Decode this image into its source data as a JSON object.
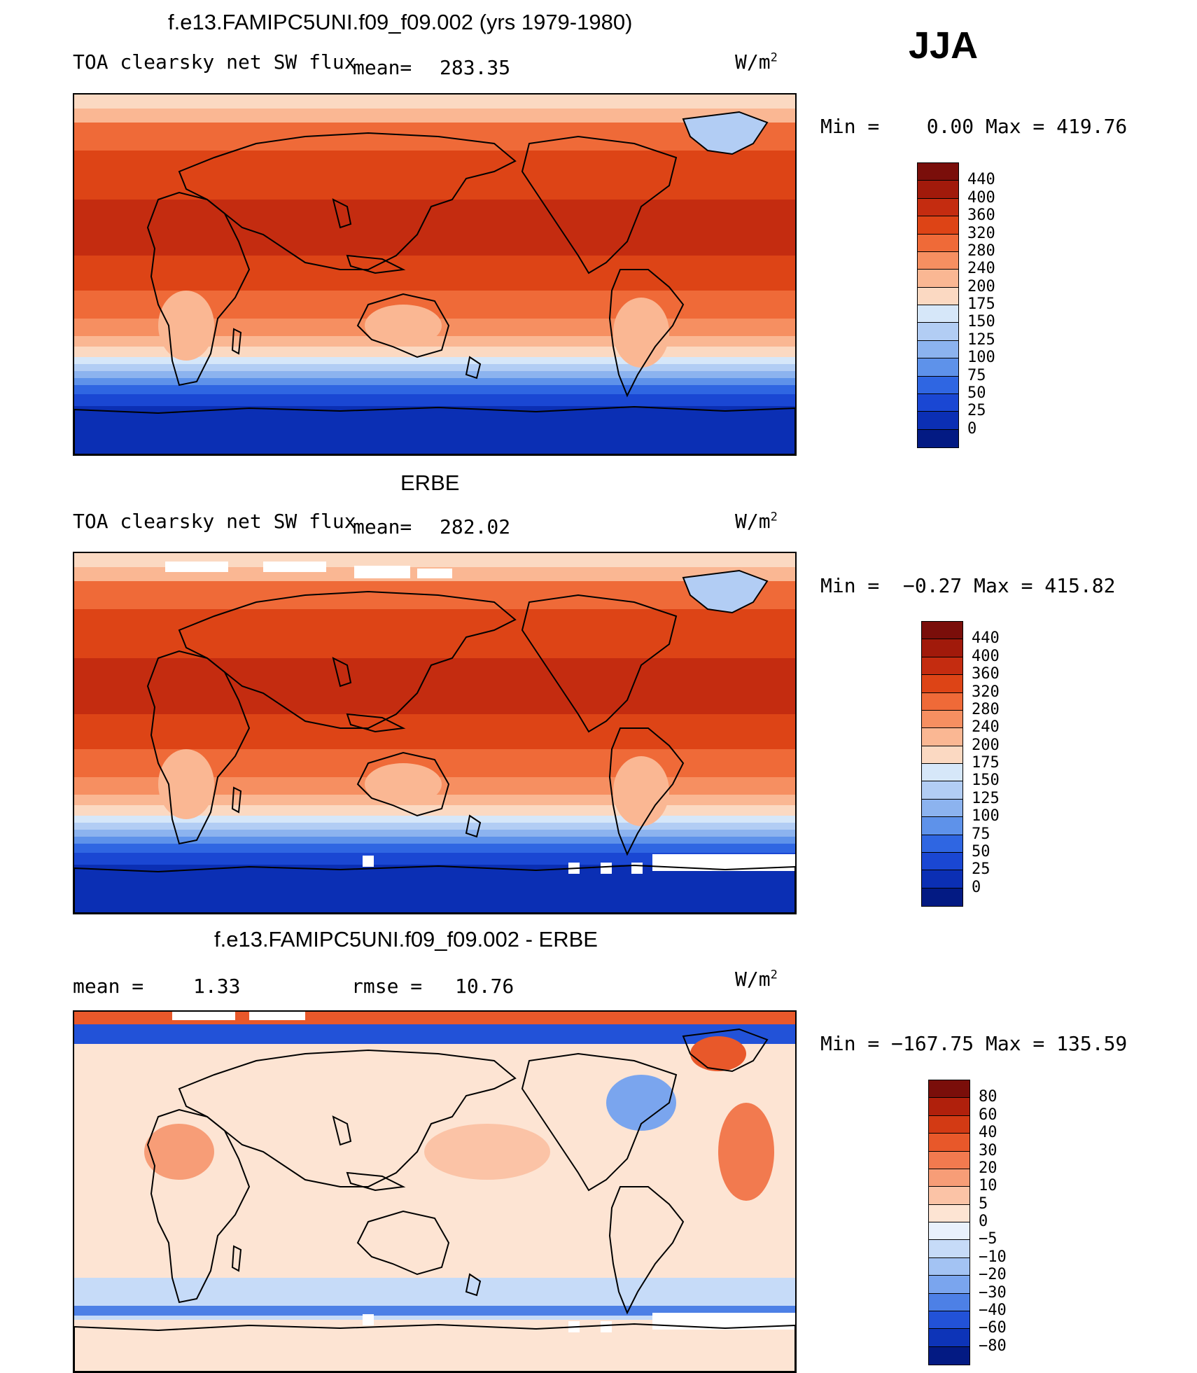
{
  "season": "JJA",
  "panels": [
    {
      "title": "f.e13.FAMIPC5UNI.f09_f09.002 (yrs 1979-1980)",
      "variable": "TOA clearsky net SW flux",
      "stat_label": "mean=",
      "stat_value": "283.35",
      "unit_base": "W/m",
      "unit_exp": "2",
      "minmax": "Min =    0.00 Max = 419.76",
      "map_type": "full",
      "colorbar": {
        "colors": [
          "#7a0e0a",
          "#a11a0b",
          "#c42c10",
          "#dd4416",
          "#ef6a38",
          "#f68f61",
          "#fab793",
          "#fbd9c2",
          "#d6e7f9",
          "#b2cdf4",
          "#8cb3ef",
          "#5e92ea",
          "#2f66e2",
          "#1a47d3",
          "#0b2fb4",
          "#031a83"
        ],
        "tick_labels": [
          "440",
          "400",
          "360",
          "320",
          "280",
          "240",
          "200",
          "175",
          "150",
          "125",
          "100",
          "75",
          "50",
          "25",
          "0"
        ]
      }
    },
    {
      "title": "ERBE",
      "variable": "TOA clearsky net SW flux",
      "stat_label": "mean=",
      "stat_value": "282.02",
      "unit_base": "W/m",
      "unit_exp": "2",
      "minmax": "Min =  −0.27 Max = 415.82",
      "map_type": "full",
      "colorbar": {
        "colors": [
          "#7a0e0a",
          "#a11a0b",
          "#c42c10",
          "#dd4416",
          "#ef6a38",
          "#f68f61",
          "#fab793",
          "#fbd9c2",
          "#d6e7f9",
          "#b2cdf4",
          "#8cb3ef",
          "#5e92ea",
          "#2f66e2",
          "#1a47d3",
          "#0b2fb4",
          "#031a83"
        ],
        "tick_labels": [
          "440",
          "400",
          "360",
          "320",
          "280",
          "240",
          "200",
          "175",
          "150",
          "125",
          "100",
          "75",
          "50",
          "25",
          "0"
        ]
      }
    },
    {
      "title": "f.e13.FAMIPC5UNI.f09_f09.002 - ERBE",
      "mean_label": "mean =",
      "mean_value": "1.33",
      "rmse_label": "rmse =",
      "rmse_value": "10.76",
      "unit_base": "W/m",
      "unit_exp": "2",
      "minmax": "Min = −167.75 Max = 135.59",
      "map_type": "diff",
      "colorbar": {
        "colors": [
          "#7a0e0a",
          "#b0200c",
          "#d33a14",
          "#e8582a",
          "#f27a4f",
          "#f79d77",
          "#fbc3a6",
          "#fde4d3",
          "#e9f1fc",
          "#c6dbf8",
          "#a3c3f3",
          "#7aa5ee",
          "#4d80e6",
          "#2252d8",
          "#0d34b8",
          "#031a83"
        ],
        "tick_labels": [
          "80",
          "60",
          "40",
          "30",
          "20",
          "10",
          "5",
          "0",
          "−5",
          "−10",
          "−20",
          "−30",
          "−40",
          "−60",
          "−80"
        ]
      }
    }
  ]
}
